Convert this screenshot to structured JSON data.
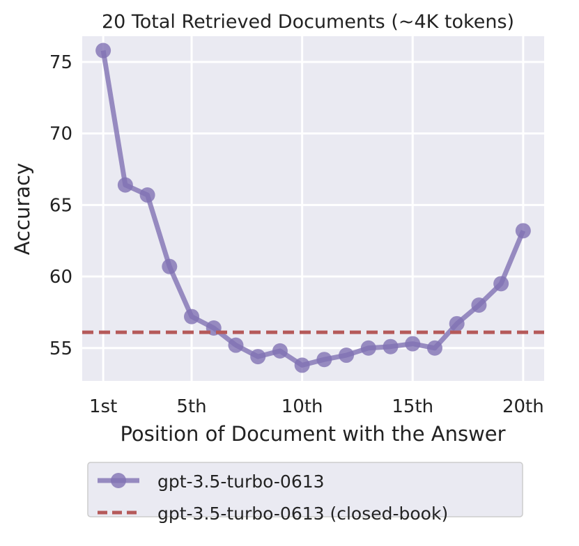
{
  "chart_data": {
    "type": "line",
    "title": "20 Total Retrieved Documents (~4K tokens)",
    "xlabel": "Position of Document with the Answer",
    "ylabel": "Accuracy",
    "x": [
      1,
      2,
      3,
      4,
      5,
      6,
      7,
      8,
      9,
      10,
      11,
      12,
      13,
      14,
      15,
      16,
      17,
      18,
      19,
      20
    ],
    "x_ticks": [
      1,
      5,
      10,
      15,
      20
    ],
    "x_tick_labels": [
      "1st",
      "5th",
      "10th",
      "15th",
      "20th"
    ],
    "y_ticks": [
      55,
      60,
      65,
      70,
      75
    ],
    "y_tick_labels": [
      "55",
      "60",
      "65",
      "70",
      "75"
    ],
    "xlim": [
      0.05,
      20.95
    ],
    "ylim": [
      52.7,
      76.8
    ],
    "grid": true,
    "legend_placement": "below",
    "series": [
      {
        "name": "gpt-3.5-turbo-0613",
        "style": "line-marker",
        "color": "#8172b3",
        "values": [
          75.8,
          66.4,
          65.7,
          60.7,
          57.2,
          56.4,
          55.2,
          54.4,
          54.8,
          53.8,
          54.2,
          54.5,
          55.0,
          55.1,
          55.3,
          55.0,
          56.7,
          58.0,
          59.5,
          63.2
        ]
      },
      {
        "name": "gpt-3.5-turbo-0613 (closed-book)",
        "style": "dashed-horizontal",
        "color": "#b55a5a",
        "value": 56.1
      }
    ],
    "background": "#eaeaf2"
  }
}
